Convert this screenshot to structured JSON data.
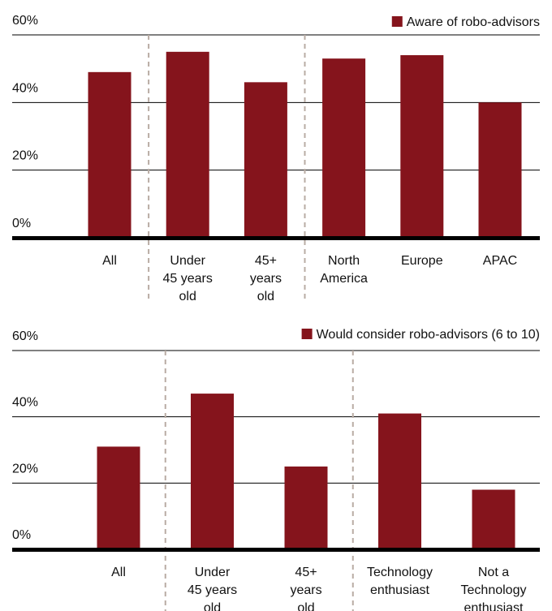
{
  "colors": {
    "bar": "#85141c",
    "grid": "#000000",
    "separator": "#b9aca4"
  },
  "chart_data": [
    {
      "type": "bar",
      "legend": "Aware of robo-advisors",
      "legend_position": "top-right",
      "y_ticks": [
        "0%",
        "20%",
        "40%",
        "60%"
      ],
      "ylim": [
        0,
        60
      ],
      "categories": [
        [
          "All"
        ],
        [
          "Under",
          "45 years",
          "old"
        ],
        [
          "45+",
          "years",
          "old"
        ],
        [
          "North",
          "America"
        ],
        [
          "Europe"
        ],
        [
          "APAC"
        ]
      ],
      "values": [
        49,
        55,
        46,
        53,
        54,
        40
      ],
      "group_separators_after": [
        1,
        3
      ]
    },
    {
      "type": "bar",
      "legend": "Would consider robo-advisors (6 to 10)",
      "legend_position": "top-right",
      "y_ticks": [
        "0%",
        "20%",
        "40%",
        "60%"
      ],
      "ylim": [
        0,
        60
      ],
      "categories": [
        [
          "All"
        ],
        [
          "Under",
          "45 years",
          "old"
        ],
        [
          "45+",
          "years",
          "old"
        ],
        [
          "Technology",
          "enthusiast"
        ],
        [
          "Not a",
          "Technology",
          "enthusiast"
        ]
      ],
      "values": [
        31,
        47,
        25,
        41,
        18
      ],
      "group_separators_after": [
        1,
        3
      ]
    }
  ]
}
